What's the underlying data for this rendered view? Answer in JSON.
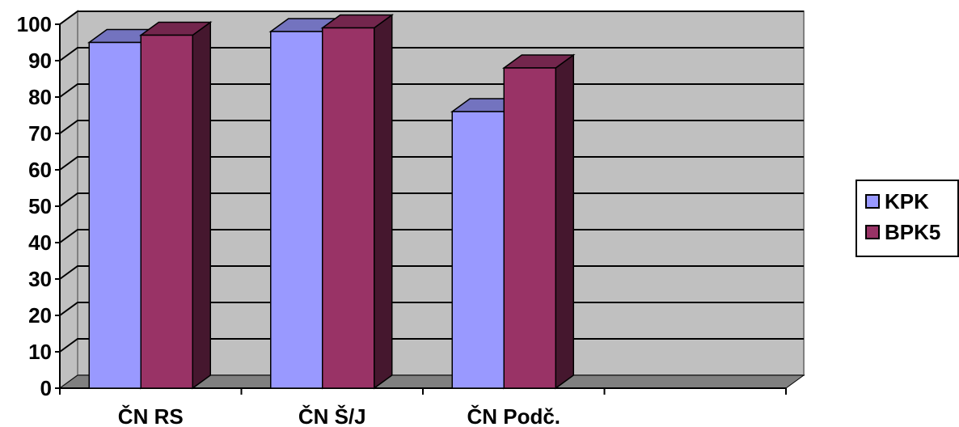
{
  "chart_data": {
    "type": "bar",
    "categories": [
      "ČN RS",
      "ČN Š/J",
      "ČN Podč."
    ],
    "series": [
      {
        "name": "KPK",
        "values": [
          95,
          98,
          76
        ],
        "color": "#9999ff"
      },
      {
        "name": "BPK5",
        "values": [
          97,
          99,
          88
        ],
        "color": "#993366"
      }
    ],
    "extra_empty_category": true,
    "ylim": [
      0,
      100
    ],
    "yticks": [
      "0",
      "10",
      "20",
      "30",
      "40",
      "50",
      "60",
      "70",
      "80",
      "90",
      "100"
    ],
    "grid": true,
    "legend_position": "right",
    "title": "",
    "xlabel": "",
    "ylabel": "",
    "colors": {
      "wall": "#c0c0c0",
      "floor": "#808080",
      "gridline": "#000000"
    }
  }
}
